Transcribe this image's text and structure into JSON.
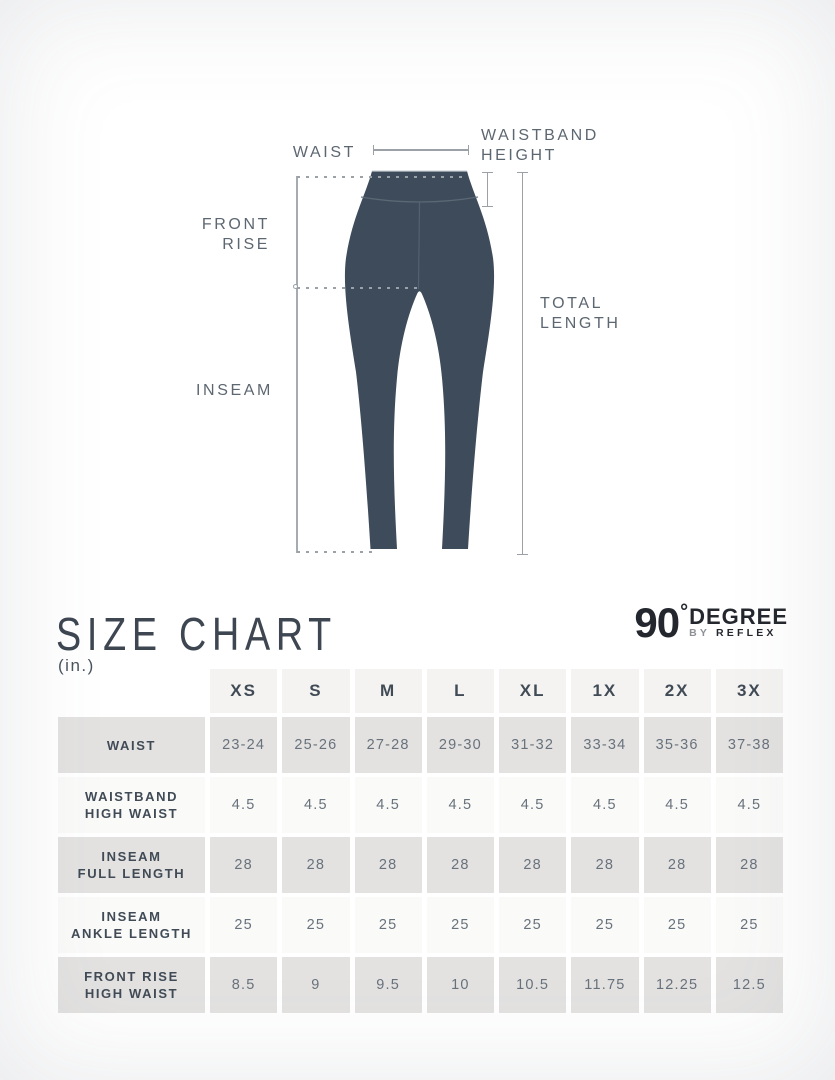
{
  "header": {
    "title": "SIZE CHART",
    "unit": "(in.)",
    "logo": {
      "number": "90",
      "degree": "°",
      "name": "DEGREE",
      "by": "BY",
      "brand": "REFLEX"
    }
  },
  "diagram": {
    "labels": {
      "waist": "WAIST",
      "waistband_height": [
        "WAISTBAND",
        "HEIGHT"
      ],
      "front_rise": [
        "FRONT",
        "RISE"
      ],
      "inseam": "INSEAM",
      "total_length": [
        "TOTAL",
        "LENGTH"
      ]
    },
    "garment_color": "#3d4b5a",
    "annotation_line_color": "#9ba1a7"
  },
  "colors": {
    "row_shade": "#e3e2e1",
    "header_shade": "#f4f3f2",
    "heading_text": "#414b56",
    "value_text": "#68727c",
    "title_text": "#3d4651",
    "logo_text": "#24282e"
  },
  "chart_data": {
    "type": "table",
    "title": "SIZE CHART",
    "unit": "in.",
    "columns": [
      "XS",
      "S",
      "M",
      "L",
      "XL",
      "1X",
      "2X",
      "3X"
    ],
    "rows": [
      {
        "label_lines": [
          "WAIST"
        ],
        "values": [
          "23-24",
          "25-26",
          "27-28",
          "29-30",
          "31-32",
          "33-34",
          "35-36",
          "37-38"
        ]
      },
      {
        "label_lines": [
          "WAISTBAND",
          "HIGH WAIST"
        ],
        "values": [
          "4.5",
          "4.5",
          "4.5",
          "4.5",
          "4.5",
          "4.5",
          "4.5",
          "4.5"
        ]
      },
      {
        "label_lines": [
          "INSEAM",
          "FULL LENGTH"
        ],
        "values": [
          "28",
          "28",
          "28",
          "28",
          "28",
          "28",
          "28",
          "28"
        ]
      },
      {
        "label_lines": [
          "INSEAM",
          "ANKLE LENGTH"
        ],
        "values": [
          "25",
          "25",
          "25",
          "25",
          "25",
          "25",
          "25",
          "25"
        ]
      },
      {
        "label_lines": [
          "FRONT RISE",
          "HIGH WAIST"
        ],
        "values": [
          "8.5",
          "9",
          "9.5",
          "10",
          "10.5",
          "11.75",
          "12.25",
          "12.5"
        ]
      }
    ]
  }
}
